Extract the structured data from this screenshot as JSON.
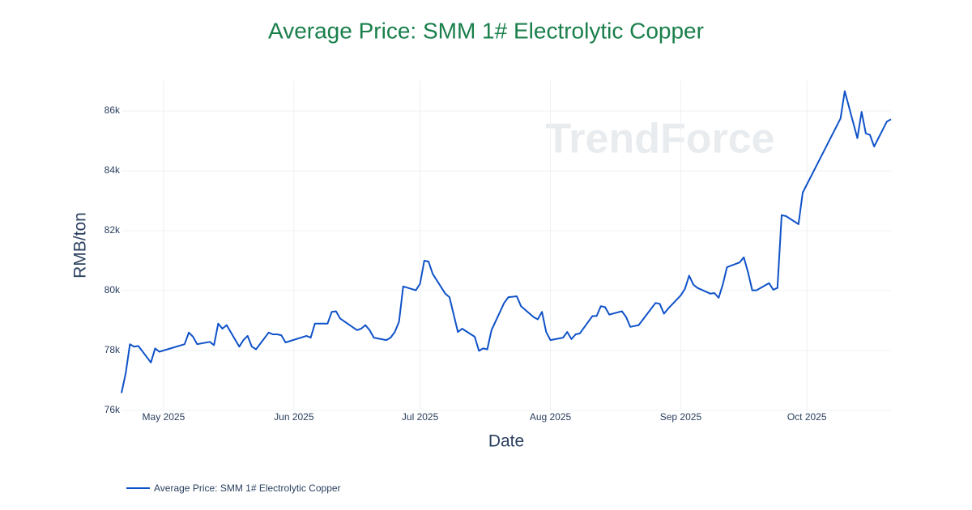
{
  "chart_data": {
    "type": "line",
    "title": "Average Price: SMM 1# Electrolytic Copper",
    "xlabel": "Date",
    "ylabel": "RMB/ton",
    "watermark": "TrendForce",
    "legend": "bottom-left",
    "grid": true,
    "xlim": [
      "2025-04-21",
      "2025-10-21"
    ],
    "xticks": [
      {
        "value": "2025-05-01",
        "label": "May 2025"
      },
      {
        "value": "2025-06-01",
        "label": "Jun 2025"
      },
      {
        "value": "2025-07-01",
        "label": "Jul 2025"
      },
      {
        "value": "2025-08-01",
        "label": "Aug 2025"
      },
      {
        "value": "2025-09-01",
        "label": "Sep 2025"
      },
      {
        "value": "2025-10-01",
        "label": "Oct 2025"
      }
    ],
    "ylim": [
      76000,
      87000
    ],
    "yticks": [
      {
        "value": 76000,
        "label": "76k"
      },
      {
        "value": 78000,
        "label": "78k"
      },
      {
        "value": 80000,
        "label": "80k"
      },
      {
        "value": 82000,
        "label": "82k"
      },
      {
        "value": 84000,
        "label": "84k"
      },
      {
        "value": 86000,
        "label": "86k"
      }
    ],
    "x": [
      "2025-04-21",
      "2025-04-22",
      "2025-04-23",
      "2025-04-24",
      "2025-04-25",
      "2025-04-28",
      "2025-04-29",
      "2025-04-30",
      "2025-05-06",
      "2025-05-07",
      "2025-05-08",
      "2025-05-09",
      "2025-05-12",
      "2025-05-13",
      "2025-05-14",
      "2025-05-15",
      "2025-05-16",
      "2025-05-19",
      "2025-05-20",
      "2025-05-21",
      "2025-05-22",
      "2025-05-23",
      "2025-05-26",
      "2025-05-27",
      "2025-05-28",
      "2025-05-29",
      "2025-05-30",
      "2025-06-04",
      "2025-06-05",
      "2025-06-06",
      "2025-06-09",
      "2025-06-10",
      "2025-06-11",
      "2025-06-12",
      "2025-06-16",
      "2025-06-17",
      "2025-06-18",
      "2025-06-19",
      "2025-06-20",
      "2025-06-23",
      "2025-06-24",
      "2025-06-25",
      "2025-06-26",
      "2025-06-27",
      "2025-06-30",
      "2025-07-01",
      "2025-07-02",
      "2025-07-03",
      "2025-07-04",
      "2025-07-07",
      "2025-07-08",
      "2025-07-10",
      "2025-07-11",
      "2025-07-14",
      "2025-07-15",
      "2025-07-16",
      "2025-07-17",
      "2025-07-18",
      "2025-07-21",
      "2025-07-22",
      "2025-07-24",
      "2025-07-25",
      "2025-07-28",
      "2025-07-29",
      "2025-07-30",
      "2025-07-31",
      "2025-08-01",
      "2025-08-04",
      "2025-08-05",
      "2025-08-06",
      "2025-08-07",
      "2025-08-08",
      "2025-08-11",
      "2025-08-12",
      "2025-08-13",
      "2025-08-14",
      "2025-08-15",
      "2025-08-18",
      "2025-08-19",
      "2025-08-20",
      "2025-08-22",
      "2025-08-26",
      "2025-08-27",
      "2025-08-28",
      "2025-08-29",
      "2025-09-01",
      "2025-09-02",
      "2025-09-03",
      "2025-09-04",
      "2025-09-05",
      "2025-09-08",
      "2025-09-09",
      "2025-09-10",
      "2025-09-11",
      "2025-09-12",
      "2025-09-15",
      "2025-09-16",
      "2025-09-17",
      "2025-09-18",
      "2025-09-19",
      "2025-09-22",
      "2025-09-23",
      "2025-09-24",
      "2025-09-25",
      "2025-09-26",
      "2025-09-29",
      "2025-09-30",
      "2025-10-09",
      "2025-10-10",
      "2025-10-13",
      "2025-10-14",
      "2025-10-15",
      "2025-10-16",
      "2025-10-17",
      "2025-10-20",
      "2025-10-21"
    ],
    "series": [
      {
        "name": "Average Price: SMM 1# Electrolytic Copper",
        "color": "#0f52c8",
        "values": [
          76580,
          77240,
          78210,
          78130,
          78150,
          77600,
          78070,
          77960,
          78210,
          78600,
          78460,
          78210,
          78290,
          78180,
          78900,
          78730,
          78850,
          78130,
          78350,
          78490,
          78130,
          78040,
          78600,
          78540,
          78540,
          78510,
          78270,
          78490,
          78430,
          78900,
          78900,
          79290,
          79310,
          79070,
          78680,
          78730,
          78850,
          78680,
          78430,
          78350,
          78430,
          78620,
          78960,
          80140,
          80010,
          80230,
          81000,
          80970,
          80560,
          79900,
          79780,
          78620,
          78730,
          78460,
          77990,
          78070,
          78040,
          78680,
          79590,
          79780,
          79810,
          79480,
          79120,
          79040,
          79290,
          78620,
          78350,
          78430,
          78620,
          78380,
          78540,
          78570,
          79150,
          79150,
          79480,
          79450,
          79200,
          79310,
          79120,
          78790,
          78850,
          79590,
          79560,
          79230,
          79400,
          79840,
          80060,
          80500,
          80200,
          80090,
          79900,
          79920,
          79760,
          80200,
          80780,
          80940,
          81110,
          80610,
          80010,
          80010,
          80250,
          80030,
          80090,
          82520,
          82490,
          82220,
          83270,
          85750,
          86660,
          85090,
          85970,
          85250,
          85200,
          84810,
          85640,
          85720
        ]
      }
    ]
  }
}
